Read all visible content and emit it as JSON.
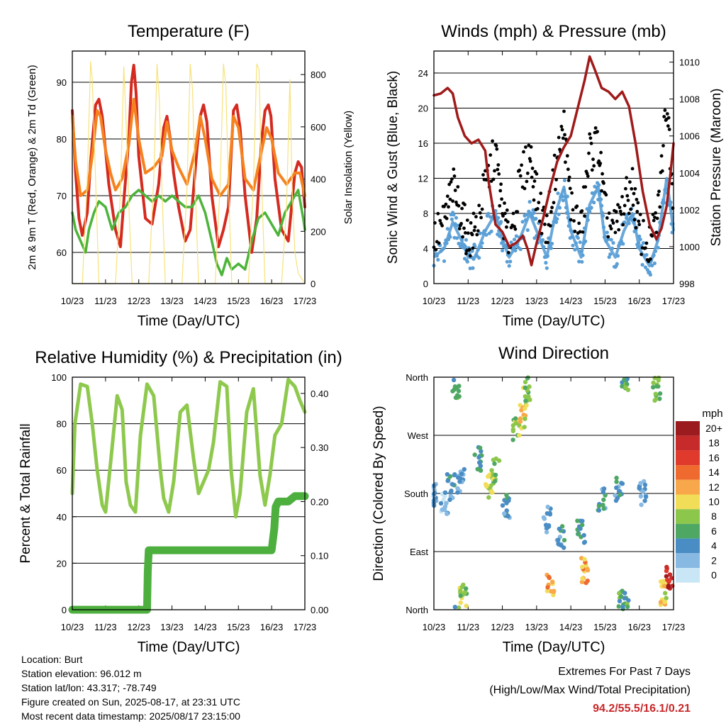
{
  "colors": {
    "red": "#d42a20",
    "orange": "#f5821f",
    "green": "#4cb43a",
    "yellow": "#f7e27a",
    "maroon": "#a01a1a",
    "blue": "#5a9fd6",
    "black": "#000000",
    "rh": "#8ec94e",
    "precip": "#4caf3e"
  },
  "chart_data": [
    {
      "id": "temperature",
      "type": "line",
      "title": "Temperature (F)",
      "xlabel": "Time (Day/UTC)",
      "ylabel": "2m & 9m T (Red, Orange) & 2m Td (Green)",
      "y2label": "Solar Insolation (Yellow)",
      "x_ticks": [
        "10/23",
        "11/23",
        "12/23",
        "13/23",
        "14/23",
        "15/23",
        "16/23",
        "17/23"
      ],
      "xlim": [
        0,
        7
      ],
      "ylim": [
        54.5,
        95.5
      ],
      "y_ticks": [
        60,
        70,
        80,
        90
      ],
      "y2lim": [
        0,
        890
      ],
      "y2_ticks": [
        0,
        200,
        400,
        600,
        800
      ],
      "grid": "horizontal",
      "series": [
        {
          "name": "2m T",
          "color": "red",
          "x": [
            0,
            0.1,
            0.2,
            0.3,
            0.45,
            0.55,
            0.7,
            0.8,
            0.9,
            1.0,
            1.1,
            1.2,
            1.3,
            1.45,
            1.55,
            1.7,
            1.78,
            1.85,
            1.92,
            2.0,
            2.2,
            2.4,
            2.6,
            2.75,
            2.85,
            2.95,
            3.05,
            3.2,
            3.4,
            3.55,
            3.75,
            3.85,
            3.95,
            4.05,
            4.2,
            4.4,
            4.55,
            4.7,
            4.85,
            4.95,
            5.05,
            5.2,
            5.4,
            5.55,
            5.7,
            5.8,
            5.9,
            5.98,
            6.1,
            6.3,
            6.5,
            6.7,
            6.8,
            6.9,
            6.97,
            7.0
          ],
          "values": [
            85,
            74,
            66,
            63,
            67,
            76,
            86,
            87,
            84,
            78,
            72,
            68,
            64,
            61,
            69,
            80,
            90,
            93,
            88,
            77,
            66,
            65,
            72,
            82,
            84,
            80,
            74,
            68,
            62,
            64,
            78,
            84,
            86,
            83,
            70,
            61,
            64,
            68,
            85,
            86,
            82,
            70,
            60,
            66,
            80,
            85,
            86,
            84,
            73,
            64,
            62,
            74,
            76,
            75,
            70,
            68
          ]
        },
        {
          "name": "9m T",
          "color": "orange",
          "x": [
            0,
            0.1,
            0.25,
            0.45,
            0.6,
            0.75,
            0.85,
            1.0,
            1.15,
            1.3,
            1.5,
            1.7,
            1.85,
            2.0,
            2.2,
            2.45,
            2.7,
            2.85,
            3.0,
            3.2,
            3.45,
            3.7,
            3.85,
            4.0,
            4.2,
            4.45,
            4.7,
            4.85,
            5.0,
            5.2,
            5.45,
            5.7,
            5.85,
            6.0,
            6.2,
            6.45,
            6.7,
            6.85,
            7.0
          ],
          "values": [
            84,
            76,
            70,
            71,
            77,
            85,
            84,
            78,
            74,
            71,
            73,
            79,
            87,
            80,
            74,
            75,
            77,
            83,
            78,
            75,
            72,
            78,
            84,
            80,
            73,
            70,
            72,
            84,
            82,
            73,
            71,
            78,
            82,
            80,
            74,
            72,
            74,
            74,
            70
          ]
        },
        {
          "name": "2m Td",
          "color": "green",
          "x": [
            0,
            0.1,
            0.25,
            0.4,
            0.5,
            0.65,
            0.8,
            1.0,
            1.2,
            1.4,
            1.6,
            1.8,
            2.0,
            2.2,
            2.4,
            2.6,
            2.8,
            3.0,
            3.2,
            3.4,
            3.6,
            3.8,
            4.0,
            4.2,
            4.35,
            4.5,
            4.65,
            4.8,
            5.0,
            5.2,
            5.4,
            5.6,
            5.8,
            6.0,
            6.2,
            6.4,
            6.6,
            6.8,
            6.95,
            7.0
          ],
          "values": [
            67,
            64,
            62,
            60,
            64,
            67,
            69,
            68,
            64,
            67,
            68,
            70,
            71,
            70,
            69,
            70,
            69,
            70,
            69,
            68,
            68,
            70,
            67,
            62,
            58,
            56,
            59,
            57,
            58,
            57,
            62,
            66,
            67,
            65,
            63,
            67,
            69,
            71,
            66,
            64
          ]
        },
        {
          "name": "Solar Insolation",
          "color": "yellow",
          "axis": "y2",
          "x": [
            0,
            0.3,
            0.45,
            0.55,
            0.6,
            0.7,
            0.8,
            1.3,
            1.45,
            1.55,
            1.62,
            1.7,
            1.8,
            2.3,
            2.45,
            2.55,
            2.62,
            2.7,
            2.8,
            3.3,
            3.45,
            3.55,
            3.62,
            3.7,
            3.8,
            4.3,
            4.45,
            4.55,
            4.62,
            4.7,
            4.8,
            5.3,
            5.45,
            5.55,
            5.62,
            5.7,
            5.8,
            6.3,
            6.45,
            6.55,
            6.62,
            6.7,
            6.8,
            7.0
          ],
          "values": [
            0,
            0,
            400,
            850,
            780,
            400,
            0,
            0,
            350,
            830,
            620,
            300,
            0,
            0,
            400,
            840,
            700,
            350,
            0,
            0,
            360,
            840,
            740,
            360,
            0,
            0,
            380,
            840,
            760,
            380,
            0,
            0,
            380,
            840,
            820,
            380,
            0,
            0,
            300,
            780,
            350,
            120,
            40,
            0
          ]
        }
      ]
    },
    {
      "id": "winds",
      "type": "scatter",
      "title": "Winds (mph) & Pressure (mb)",
      "xlabel": "Time (Day/UTC)",
      "ylabel": "Sonic Wind & Gust (Blue, Black)",
      "y2label": "Station Pressure (Maroon)",
      "x_ticks": [
        "10/23",
        "11/23",
        "12/23",
        "13/23",
        "14/23",
        "15/23",
        "16/23",
        "17/23"
      ],
      "xlim": [
        0,
        7
      ],
      "ylim": [
        0,
        26.5
      ],
      "y_ticks": [
        0,
        4,
        8,
        12,
        16,
        20,
        24
      ],
      "y2lim": [
        998,
        1010.6
      ],
      "y2_ticks": [
        998,
        1000,
        1002,
        1004,
        1006,
        1008,
        1010
      ],
      "grid": "horizontal",
      "series": [
        {
          "name": "Sonic Wind",
          "color": "blue",
          "x": [
            0,
            0.3,
            0.55,
            0.8,
            1.0,
            1.2,
            1.5,
            1.8,
            2.0,
            2.2,
            2.5,
            2.8,
            3.0,
            3.3,
            3.55,
            3.8,
            4.0,
            4.3,
            4.55,
            4.8,
            5.0,
            5.3,
            5.55,
            5.8,
            6.0,
            6.3,
            6.55,
            6.8,
            7.0
          ],
          "values": [
            3,
            4,
            7,
            5,
            3,
            3,
            6,
            8,
            5,
            3,
            5,
            8,
            6,
            3,
            8,
            11,
            6,
            3,
            9,
            11,
            5,
            3,
            6,
            8,
            4,
            2,
            5,
            12,
            6
          ]
        },
        {
          "name": "Gust",
          "color": "black",
          "x": [
            0,
            0.3,
            0.55,
            0.8,
            1.0,
            1.2,
            1.5,
            1.8,
            2.0,
            2.2,
            2.5,
            2.8,
            3.0,
            3.3,
            3.55,
            3.8,
            4.0,
            4.3,
            4.55,
            4.8,
            5.0,
            5.3,
            5.55,
            5.8,
            6.0,
            6.3,
            6.55,
            6.8,
            7.0
          ],
          "values": [
            5,
            7,
            11,
            8,
            5,
            6,
            11,
            15,
            8,
            5,
            11,
            15,
            10,
            6,
            13,
            18,
            9,
            6,
            15,
            16,
            8,
            6,
            9,
            11,
            6,
            4,
            8,
            21,
            10
          ]
        },
        {
          "name": "Station Pressure",
          "color": "maroon",
          "axis": "y2",
          "x": [
            0,
            0.2,
            0.4,
            0.55,
            0.7,
            0.9,
            1.1,
            1.3,
            1.5,
            1.6,
            1.8,
            2.0,
            2.2,
            2.4,
            2.6,
            2.75,
            2.85,
            3.0,
            3.2,
            3.4,
            3.6,
            3.8,
            4.0,
            4.2,
            4.4,
            4.55,
            4.7,
            4.9,
            5.1,
            5.3,
            5.5,
            5.7,
            5.9,
            6.1,
            6.3,
            6.5,
            6.65,
            6.8,
            6.9,
            7.0
          ],
          "values": [
            1008.2,
            1008.3,
            1008.6,
            1008.3,
            1007.0,
            1006.0,
            1005.6,
            1005.8,
            1005.2,
            1003.5,
            1001.2,
            1000.8,
            1000.0,
            1000.2,
            1000.6,
            999.8,
            999.0,
            1000.2,
            1001.6,
            1003.2,
            1004.6,
            1005.4,
            1006.0,
            1007.5,
            1009.0,
            1010.3,
            1009.6,
            1008.6,
            1008.4,
            1008.0,
            1008.4,
            1007.6,
            1005.5,
            1003.0,
            1001.2,
            1000.4,
            1001.0,
            1002.2,
            1003.8,
            1005.6
          ]
        }
      ]
    },
    {
      "id": "humidity",
      "type": "line",
      "title": "Relative Humidity (%) & Precipitation (in)",
      "xlabel": "Time (Day/UTC)",
      "ylabel": "Percent & Total Rainfall",
      "x_ticks": [
        "10/23",
        "11/23",
        "12/23",
        "13/23",
        "14/23",
        "15/23",
        "16/23",
        "17/23"
      ],
      "xlim": [
        0,
        7
      ],
      "ylim": [
        0,
        100
      ],
      "y_ticks": [
        0,
        20,
        40,
        60,
        80,
        100
      ],
      "y2lim": [
        0,
        0.43
      ],
      "y2_ticks": [
        "0.00",
        "0.10",
        "0.20",
        "0.30",
        "0.40"
      ],
      "grid": "horizontal",
      "series": [
        {
          "name": "Relative Humidity",
          "color": "rh",
          "x": [
            0,
            0.08,
            0.25,
            0.45,
            0.6,
            0.75,
            0.9,
            1.0,
            1.2,
            1.35,
            1.5,
            1.62,
            1.75,
            1.9,
            2.05,
            2.25,
            2.45,
            2.65,
            2.75,
            2.9,
            3.05,
            3.25,
            3.45,
            3.65,
            3.8,
            3.95,
            4.1,
            4.25,
            4.45,
            4.65,
            4.78,
            4.92,
            5.05,
            5.25,
            5.45,
            5.65,
            5.8,
            5.95,
            6.1,
            6.3,
            6.5,
            6.7,
            6.85,
            7.0
          ],
          "values": [
            50,
            80,
            97,
            96,
            80,
            60,
            45,
            42,
            70,
            92,
            86,
            55,
            45,
            42,
            75,
            97,
            92,
            60,
            48,
            42,
            55,
            85,
            88,
            65,
            50,
            55,
            60,
            72,
            98,
            96,
            60,
            40,
            50,
            85,
            95,
            58,
            45,
            58,
            75,
            80,
            99,
            96,
            90,
            85
          ]
        },
        {
          "name": "Total Rainfall",
          "color": "precip",
          "axis": "y2",
          "x": [
            0,
            2.25,
            2.27,
            2.3,
            3.0,
            4.0,
            5.0,
            6.0,
            6.08,
            6.12,
            6.2,
            6.5,
            6.7,
            7.0
          ],
          "values": [
            0,
            0,
            0.07,
            0.11,
            0.11,
            0.11,
            0.11,
            0.11,
            0.15,
            0.19,
            0.2,
            0.2,
            0.21,
            0.21
          ]
        }
      ]
    },
    {
      "id": "wind_direction",
      "type": "scatter",
      "title": "Wind Direction",
      "xlabel": "Time (Day/UTC)",
      "ylabel": "Direction (Colored By Speed)",
      "x_ticks": [
        "10/23",
        "11/23",
        "12/23",
        "13/23",
        "14/23",
        "15/23",
        "16/23",
        "17/23"
      ],
      "xlim": [
        0,
        7
      ],
      "ylim": [
        0,
        360
      ],
      "y_ticks": [
        "North",
        "East",
        "South",
        "West",
        "North"
      ],
      "grid": "horizontal",
      "legend": {
        "title": "mph",
        "placement": "right",
        "labels": [
          "20+",
          "18",
          "16",
          "14",
          "12",
          "10",
          "8",
          "6",
          "4",
          "2",
          "0"
        ],
        "colors": [
          "#9b1b1e",
          "#c62a2a",
          "#e03a2c",
          "#ef6a2e",
          "#f8a74a",
          "#f1dd58",
          "#8cc64b",
          "#4ea864",
          "#4a8cc4",
          "#87b9e2",
          "#c8e6f6"
        ]
      },
      "clusters": [
        {
          "x": 0.0,
          "dir": 175,
          "speed": 3
        },
        {
          "x": 0.3,
          "dir": 165,
          "speed": 2
        },
        {
          "x": 0.5,
          "dir": 190,
          "speed": 4
        },
        {
          "x": 0.65,
          "dir": 345,
          "speed": 6
        },
        {
          "x": 0.8,
          "dir": 200,
          "speed": 3
        },
        {
          "x": 0.85,
          "dir": 20,
          "speed": 8
        },
        {
          "x": 1.3,
          "dir": 235,
          "speed": 5
        },
        {
          "x": 1.6,
          "dir": 190,
          "speed": 9
        },
        {
          "x": 1.8,
          "dir": 215,
          "speed": 8
        },
        {
          "x": 2.1,
          "dir": 160,
          "speed": 4
        },
        {
          "x": 2.4,
          "dir": 280,
          "speed": 8
        },
        {
          "x": 2.6,
          "dir": 300,
          "speed": 10
        },
        {
          "x": 2.7,
          "dir": 340,
          "speed": 8
        },
        {
          "x": 3.4,
          "dir": 40,
          "speed": 12
        },
        {
          "x": 3.3,
          "dir": 140,
          "speed": 3
        },
        {
          "x": 3.7,
          "dir": 110,
          "speed": 4
        },
        {
          "x": 4.4,
          "dir": 60,
          "speed": 12
        },
        {
          "x": 4.3,
          "dir": 120,
          "speed": 5
        },
        {
          "x": 4.9,
          "dir": 170,
          "speed": 4
        },
        {
          "x": 5.4,
          "dir": 185,
          "speed": 4
        },
        {
          "x": 5.5,
          "dir": 10,
          "speed": 6
        },
        {
          "x": 5.6,
          "dir": 355,
          "speed": 6
        },
        {
          "x": 6.1,
          "dir": 180,
          "speed": 3
        },
        {
          "x": 6.5,
          "dir": 340,
          "speed": 7
        },
        {
          "x": 6.7,
          "dir": 25,
          "speed": 10
        },
        {
          "x": 6.9,
          "dir": 50,
          "speed": 18
        }
      ]
    }
  ],
  "info": {
    "location": "Location: Burt",
    "elevation": "Station elevation: 96.012 m",
    "latlon": "Station lat/lon: 43.317; -78.749",
    "created": "Figure created on Sun, 2025-08-17, at 23:31 UTC",
    "recent": "Most recent data timestamp: 2025/08/17 23:15:00"
  },
  "extremes": {
    "heading": "Extremes For Past 7 Days",
    "subheading": "(High/Low/Max Wind/Total Precipitation)",
    "values": "94.2/55.5/16.1/0.21"
  }
}
